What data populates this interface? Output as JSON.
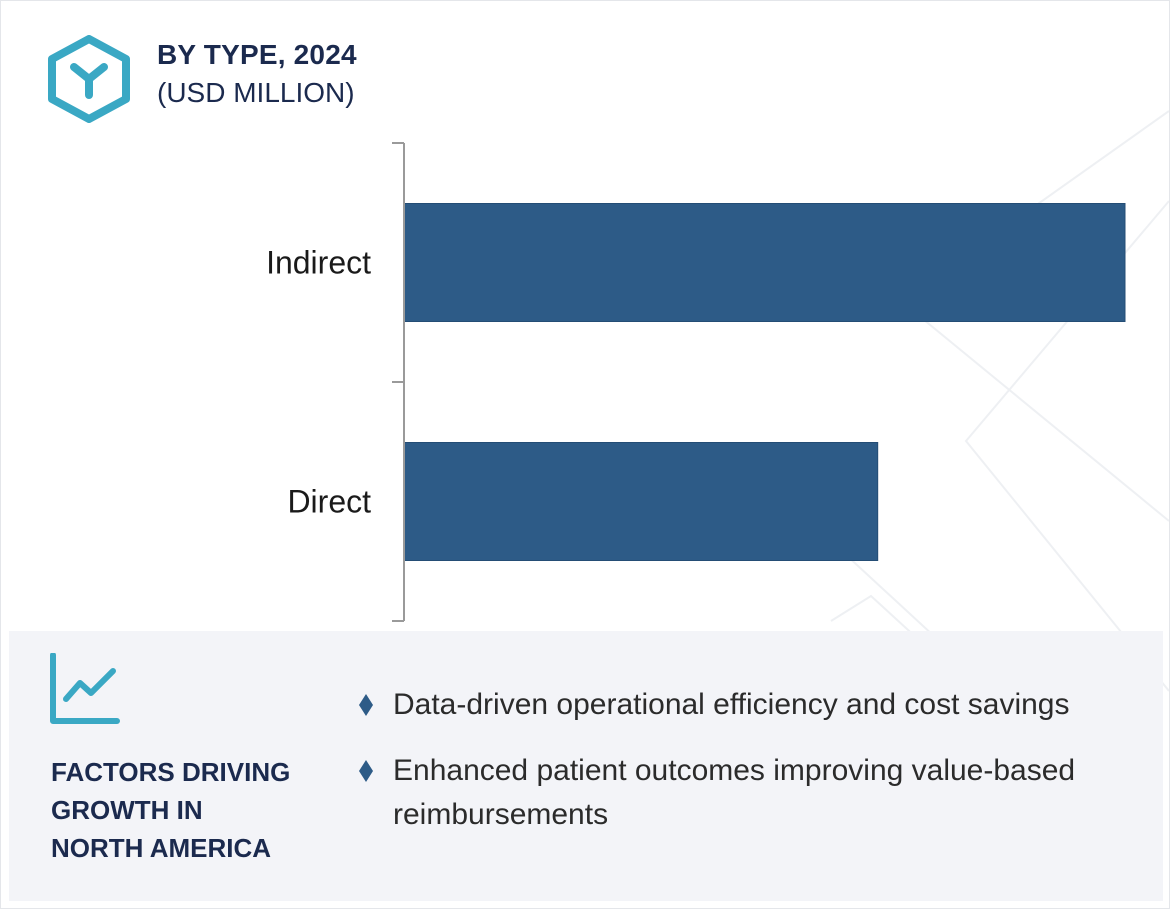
{
  "header": {
    "title": "BY TYPE, 2024",
    "subtitle": "(USD MILLION)"
  },
  "colors": {
    "bar": "#2d5b87",
    "accent": "#3aa8c4",
    "title": "#1b2a4e",
    "footer_bg": "#f3f4f8"
  },
  "icons": {
    "header": "hexagon-y-logo-icon",
    "footer": "line-chart-trend-icon",
    "bullet": "diamond-bullet-icon"
  },
  "chart_data": {
    "type": "bar",
    "orientation": "horizontal",
    "categories": [
      "Indirect",
      "Direct"
    ],
    "values": [
      100,
      65.7
    ],
    "value_note": "",
    "xlim": [
      0,
      100
    ],
    "grid": false,
    "legend": "none"
  },
  "footer": {
    "title_lines": [
      "FACTORS DRIVING",
      "GROWTH IN",
      "NORTH AMERICA"
    ],
    "factors": [
      "Data-driven operational efficiency and cost savings",
      "Enhanced patient outcomes improving value-based reimbursements"
    ]
  }
}
